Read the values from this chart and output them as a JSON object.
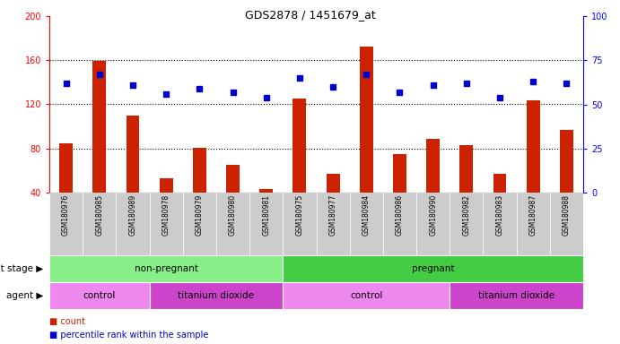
{
  "title": "GDS2878 / 1451679_at",
  "samples": [
    "GSM180976",
    "GSM180985",
    "GSM180989",
    "GSM180978",
    "GSM180979",
    "GSM180980",
    "GSM180981",
    "GSM180975",
    "GSM180977",
    "GSM180984",
    "GSM180986",
    "GSM180990",
    "GSM180982",
    "GSM180983",
    "GSM180987",
    "GSM180988"
  ],
  "counts": [
    85,
    159,
    110,
    53,
    81,
    65,
    43,
    125,
    57,
    172,
    75,
    89,
    83,
    57,
    124,
    97
  ],
  "percentiles": [
    62,
    67,
    61,
    56,
    59,
    57,
    54,
    65,
    60,
    67,
    57,
    61,
    62,
    54,
    63,
    62
  ],
  "ylim_left": [
    40,
    200
  ],
  "ylim_right": [
    0,
    100
  ],
  "yticks_left": [
    40,
    80,
    120,
    160,
    200
  ],
  "yticks_right": [
    0,
    25,
    50,
    75,
    100
  ],
  "bar_color": "#cc2200",
  "dot_color": "#0000cc",
  "development_stage_groups": [
    {
      "text": "non-pregnant",
      "start": 0,
      "end": 7,
      "color": "#88ee88"
    },
    {
      "text": "pregnant",
      "start": 7,
      "end": 16,
      "color": "#44cc44"
    }
  ],
  "agent_groups": [
    {
      "text": "control",
      "start": 0,
      "end": 3,
      "color": "#ee88ee"
    },
    {
      "text": "titanium dioxide",
      "start": 3,
      "end": 7,
      "color": "#cc44cc"
    },
    {
      "text": "control",
      "start": 7,
      "end": 12,
      "color": "#ee88ee"
    },
    {
      "text": "titanium dioxide",
      "start": 12,
      "end": 16,
      "color": "#cc44cc"
    }
  ],
  "bar_width": 0.4,
  "bg_color": "#ffffff",
  "tick_label_bg": "#cccccc"
}
